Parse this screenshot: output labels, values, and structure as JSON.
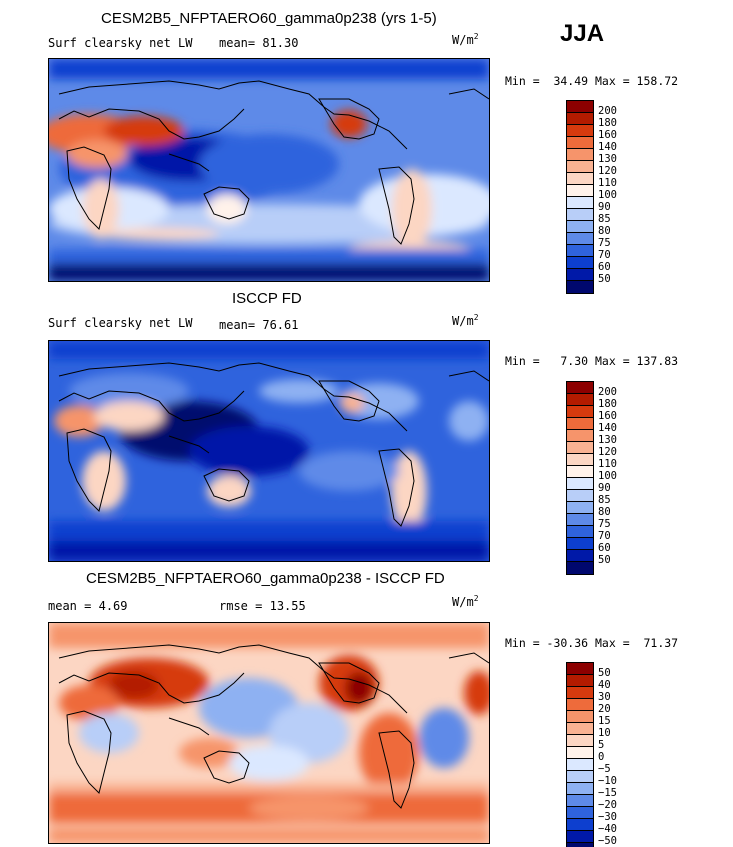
{
  "season": "JJA",
  "chart_data": [
    {
      "type": "heatmap",
      "title": "CESM2B5_NFPTAERO60_gamma0p238 (yrs 1-5)",
      "variable": "Surf clearsky net LW",
      "stat_label": "mean=",
      "stat_value": "81.30",
      "units_base": "W/m",
      "units_exp": "2",
      "minmax": "Min =  34.49 Max = 158.72",
      "levels": [
        "200",
        "180",
        "160",
        "140",
        "130",
        "120",
        "110",
        "100",
        "90",
        "85",
        "80",
        "75",
        "70",
        "60",
        "50"
      ],
      "colors": [
        "#8c0000",
        "#b31b00",
        "#d63a0e",
        "#ee6b3b",
        "#f6946b",
        "#f9b292",
        "#fcd6c3",
        "#fff2ea",
        "#dbe8ff",
        "#b8cef8",
        "#8eb1f2",
        "#5e8ae8",
        "#2f63dd",
        "#0d3fcf",
        "#0019a8",
        "#00086e"
      ]
    },
    {
      "type": "heatmap",
      "title": "ISCCP FD",
      "variable": "Surf clearsky net LW",
      "stat_label": "mean=",
      "stat_value": "76.61",
      "units_base": "W/m",
      "units_exp": "2",
      "minmax": "Min =   7.30 Max = 137.83",
      "levels": [
        "200",
        "180",
        "160",
        "140",
        "130",
        "120",
        "110",
        "100",
        "90",
        "85",
        "80",
        "75",
        "70",
        "60",
        "50"
      ],
      "colors": [
        "#8c0000",
        "#b31b00",
        "#d63a0e",
        "#ee6b3b",
        "#f6946b",
        "#f9b292",
        "#fcd6c3",
        "#fff2ea",
        "#dbe8ff",
        "#b8cef8",
        "#8eb1f2",
        "#5e8ae8",
        "#2f63dd",
        "#0d3fcf",
        "#0019a8",
        "#00086e"
      ]
    },
    {
      "type": "heatmap",
      "title": "CESM2B5_NFPTAERO60_gamma0p238 - ISCCP FD",
      "stat_label": "mean =",
      "stat_value": "4.69",
      "stat2_label": "rmse =",
      "stat2_value": "13.55",
      "units_base": "W/m",
      "units_exp": "2",
      "minmax": "Min = -30.36 Max =  71.37",
      "levels": [
        "50",
        "40",
        "30",
        "20",
        "15",
        "10",
        "5",
        "0",
        "−5",
        "−10",
        "−15",
        "−20",
        "−30",
        "−40",
        "−50"
      ],
      "colors": [
        "#8c0000",
        "#b31b00",
        "#d63a0e",
        "#ee6b3b",
        "#f6946b",
        "#f9b292",
        "#fcd6c3",
        "#fff2ea",
        "#dbe8ff",
        "#b8cef8",
        "#8eb1f2",
        "#5e8ae8",
        "#2f63dd",
        "#0d3fcf",
        "#0019a8",
        "#00086e"
      ]
    }
  ]
}
